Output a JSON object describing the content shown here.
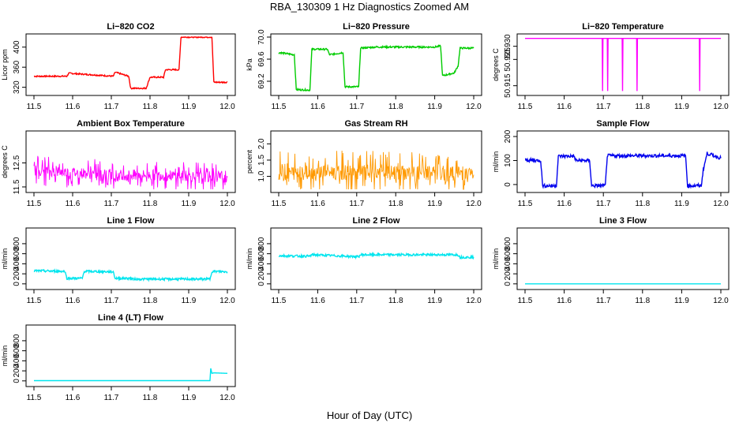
{
  "figure": {
    "title": "RBA_130309  1 Hz Diagnostics Zoomed AM",
    "xlabel": "Hour of Day (UTC)"
  },
  "chart_data": [
    {
      "type": "line",
      "title": "Li−820 CO2",
      "ylabel": "Licor ppm",
      "color": "#ff0000",
      "xlim": [
        11.5,
        12.0
      ],
      "ylim": [
        310,
        420
      ],
      "xticks": [
        11.5,
        11.6,
        11.7,
        11.8,
        11.9,
        12.0
      ],
      "yticks": [
        320,
        360,
        400
      ],
      "series": [
        {
          "x": [
            11.5,
            11.585,
            11.59,
            11.705,
            11.71,
            11.745,
            11.75,
            11.79,
            11.8,
            11.835,
            11.84,
            11.875,
            11.88,
            11.96,
            11.965,
            12.0
          ],
          "y": [
            342,
            342,
            348,
            342,
            350,
            342,
            318,
            318,
            340,
            340,
            355,
            355,
            420,
            420,
            330,
            330
          ]
        }
      ]
    },
    {
      "type": "line",
      "title": "Li−820 Pressure",
      "ylabel": "kPa",
      "color": "#00cc00",
      "xlim": [
        11.5,
        12.0
      ],
      "ylim": [
        69.0,
        70.0
      ],
      "xticks": [
        11.5,
        11.6,
        11.7,
        11.8,
        11.9,
        12.0
      ],
      "yticks": [
        69.2,
        69.6,
        70.0
      ],
      "series": [
        {
          "x": [
            11.5,
            11.54,
            11.545,
            11.58,
            11.585,
            11.625,
            11.63,
            11.665,
            11.67,
            11.705,
            11.71,
            11.75,
            11.9,
            11.915,
            11.92,
            11.95,
            11.96,
            11.965,
            12.0
          ],
          "y": [
            69.72,
            69.68,
            69.05,
            69.04,
            69.78,
            69.78,
            69.68,
            69.72,
            69.1,
            69.1,
            69.8,
            69.82,
            69.82,
            69.84,
            69.3,
            69.35,
            69.48,
            69.8,
            69.8
          ]
        }
      ]
    },
    {
      "type": "line",
      "title": "Li−820 Temperature",
      "ylabel": "degrees C",
      "color": "#ff00ff",
      "xlim": [
        11.5,
        12.0
      ],
      "ylim": [
        50.9125,
        50.9335
      ],
      "xticks": [
        11.5,
        11.6,
        11.7,
        11.8,
        11.9,
        12.0
      ],
      "yticks": [
        50.915,
        50.925,
        50.93
      ],
      "series": [
        {
          "x": [
            11.5,
            11.697,
            11.698,
            11.699,
            11.71,
            11.711,
            11.712,
            11.748,
            11.749,
            11.75,
            11.785,
            11.786,
            11.787,
            11.945,
            11.946,
            11.947,
            12.0
          ],
          "y": [
            50.933,
            50.933,
            50.913,
            50.933,
            50.933,
            50.913,
            50.933,
            50.933,
            50.913,
            50.933,
            50.933,
            50.913,
            50.933,
            50.933,
            50.913,
            50.933,
            50.933
          ]
        }
      ]
    },
    {
      "type": "line",
      "title": "Ambient Box Temperature",
      "ylabel": "degrees C",
      "color": "#ff00ff",
      "xlim": [
        11.5,
        12.0
      ],
      "ylim": [
        11.4,
        13.7
      ],
      "xticks": [
        11.5,
        11.6,
        11.7,
        11.8,
        11.9,
        12.0
      ],
      "yticks": [
        11.5,
        12.5
      ],
      "series": [
        {
          "x": [
            11.5,
            11.6,
            11.7,
            11.8,
            11.9,
            12.0
          ],
          "y": [
            12.2,
            12.1,
            12.0,
            12.0,
            11.95,
            11.9
          ]
        }
      ]
    },
    {
      "type": "line",
      "title": "Gas Stream RH",
      "ylabel": "percent",
      "color": "#ff9900",
      "xlim": [
        11.5,
        12.0
      ],
      "ylim": [
        0.6,
        2.3
      ],
      "xticks": [
        11.5,
        11.6,
        11.7,
        11.8,
        11.9,
        12.0
      ],
      "yticks": [
        1.0,
        1.5,
        2.0
      ],
      "series": [
        {
          "x": [
            11.5,
            11.6,
            11.7,
            11.8,
            11.9,
            12.0
          ],
          "y": [
            1.1,
            1.15,
            1.1,
            1.1,
            1.1,
            1.05
          ]
        }
      ]
    },
    {
      "type": "line",
      "title": "Sample Flow",
      "ylabel": "ml/min",
      "color": "#0000ee",
      "xlim": [
        11.5,
        12.0
      ],
      "ylim": [
        -20,
        210
      ],
      "xticks": [
        11.5,
        11.6,
        11.7,
        11.8,
        11.9,
        12.0
      ],
      "yticks": [
        0,
        100,
        200
      ],
      "series": [
        {
          "x": [
            11.5,
            11.54,
            11.545,
            11.58,
            11.585,
            11.625,
            11.63,
            11.665,
            11.67,
            11.705,
            11.71,
            11.75,
            11.91,
            11.915,
            11.95,
            11.955,
            11.965,
            12.0
          ],
          "y": [
            102,
            100,
            -5,
            -5,
            118,
            118,
            100,
            100,
            -5,
            -5,
            120,
            120,
            120,
            -5,
            -5,
            60,
            130,
            110
          ]
        }
      ]
    },
    {
      "type": "line",
      "title": "Line 1 Flow",
      "ylabel": "ml/min",
      "color": "#00e5ee",
      "xlim": [
        11.5,
        12.0
      ],
      "ylim": [
        -50,
        1050
      ],
      "xticks": [
        11.5,
        11.6,
        11.7,
        11.8,
        11.9,
        12.0
      ],
      "yticks": [
        0,
        200,
        400,
        600,
        800
      ],
      "series": [
        {
          "x": [
            11.5,
            11.58,
            11.585,
            11.625,
            11.63,
            11.705,
            11.71,
            11.75,
            11.755,
            11.955,
            11.96,
            12.0
          ],
          "y": [
            260,
            250,
            110,
            110,
            250,
            240,
            110,
            110,
            95,
            95,
            250,
            240
          ]
        }
      ]
    },
    {
      "type": "line",
      "title": "Line 2 Flow",
      "ylabel": "ml/min",
      "color": "#00e5ee",
      "xlim": [
        11.5,
        12.0
      ],
      "ylim": [
        -50,
        1050
      ],
      "xticks": [
        11.5,
        11.6,
        11.7,
        11.8,
        11.9,
        12.0
      ],
      "yticks": [
        0,
        200,
        400,
        600,
        800
      ],
      "series": [
        {
          "x": [
            11.5,
            11.58,
            11.585,
            11.705,
            11.71,
            11.96,
            11.965,
            12.0
          ],
          "y": [
            560,
            550,
            580,
            540,
            580,
            580,
            530,
            530
          ]
        }
      ]
    },
    {
      "type": "line",
      "title": "Line 3 Flow",
      "ylabel": "ml/min",
      "color": "#00e5ee",
      "xlim": [
        11.5,
        12.0
      ],
      "ylim": [
        -50,
        1050
      ],
      "xticks": [
        11.5,
        11.6,
        11.7,
        11.8,
        11.9,
        12.0
      ],
      "yticks": [
        0,
        200,
        400,
        600,
        800
      ],
      "series": [
        {
          "x": [
            11.5,
            12.0
          ],
          "y": [
            0,
            0
          ]
        }
      ]
    },
    {
      "type": "line",
      "title": "Line 4 (LT) Flow",
      "ylabel": "ml/min",
      "color": "#00e5ee",
      "xlim": [
        11.5,
        12.0
      ],
      "ylim": [
        -50,
        1050
      ],
      "xticks": [
        11.5,
        11.6,
        11.7,
        11.8,
        11.9,
        12.0
      ],
      "yticks": [
        0,
        200,
        400,
        600,
        800
      ],
      "series": [
        {
          "x": [
            11.5,
            11.955,
            11.957,
            11.96,
            11.965,
            12.0
          ],
          "y": [
            5,
            5,
            250,
            150,
            160,
            150
          ]
        }
      ]
    }
  ]
}
